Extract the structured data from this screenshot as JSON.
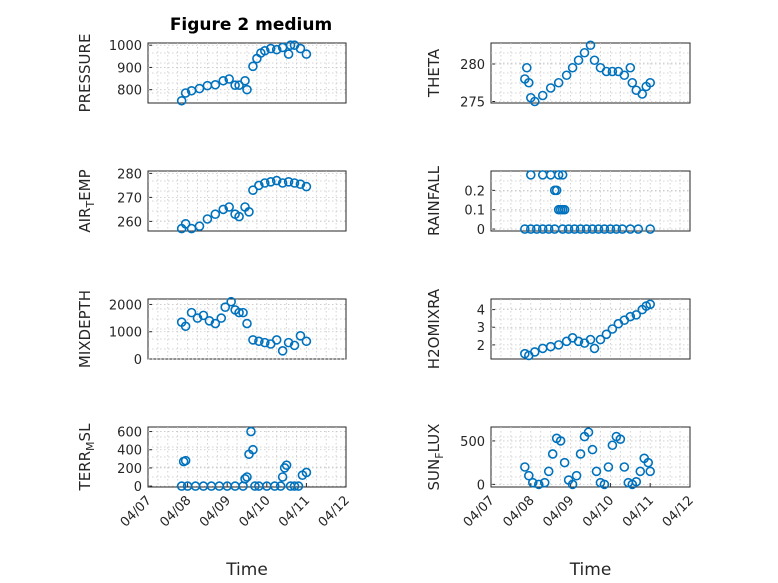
{
  "figure_title": "Figure 2 medium",
  "marker_color": "#0072bd",
  "chart_data": [
    {
      "type": "scatter",
      "ylabel": "PRESSURE",
      "xlabel": "",
      "ylim": [
        740,
        1010
      ],
      "yticks": [
        800,
        900,
        1000
      ],
      "xlim": [
        0,
        5
      ],
      "xticks": [],
      "grid": true,
      "series": [
        {
          "x": [
            0.85,
            0.95,
            1.1,
            1.3,
            1.5,
            1.7,
            1.9,
            2.05,
            2.2,
            2.3,
            2.45,
            2.5,
            2.65,
            2.75,
            2.85,
            2.95,
            3.1,
            3.25,
            3.4,
            3.55,
            3.6,
            3.7,
            3.85,
            4.0
          ],
          "y": [
            750,
            785,
            795,
            805,
            818,
            822,
            840,
            848,
            820,
            820,
            840,
            800,
            905,
            940,
            965,
            975,
            985,
            980,
            990,
            960,
            1000,
            1000,
            985,
            960
          ]
        }
      ]
    },
    {
      "type": "scatter",
      "ylabel": "THETA",
      "xlabel": "",
      "ylim": [
        274.8,
        282.8
      ],
      "yticks": [
        275,
        280
      ],
      "xlim": [
        0,
        5
      ],
      "xticks": [],
      "grid": true,
      "series": [
        {
          "x": [
            0.85,
            0.9,
            0.95,
            1.0,
            1.1,
            1.3,
            1.5,
            1.7,
            1.9,
            2.05,
            2.2,
            2.35,
            2.5,
            2.6,
            2.75,
            2.9,
            3.05,
            3.2,
            3.35,
            3.5,
            3.55,
            3.65,
            3.8,
            3.9,
            4.0
          ],
          "y": [
            278,
            279.5,
            277.5,
            275.5,
            275,
            275.8,
            276.8,
            277.5,
            278.5,
            279.5,
            280.5,
            281.5,
            282.5,
            280.5,
            279.5,
            279,
            279,
            279,
            278.5,
            279.5,
            277.5,
            276.5,
            276,
            277,
            277.5
          ]
        }
      ]
    },
    {
      "type": "scatter",
      "ylabel": "AIR_TEMP",
      "xlabel": "",
      "ylim": [
        256,
        281
      ],
      "yticks": [
        260,
        270,
        280
      ],
      "xlim": [
        0,
        5
      ],
      "xticks": [],
      "grid": true,
      "series": [
        {
          "x": [
            0.85,
            0.95,
            1.1,
            1.3,
            1.5,
            1.7,
            1.9,
            2.05,
            2.2,
            2.3,
            2.45,
            2.55,
            2.65,
            2.8,
            2.95,
            3.1,
            3.25,
            3.4,
            3.55,
            3.7,
            3.85,
            4.0
          ],
          "y": [
            257,
            259,
            257,
            258,
            261,
            263,
            265,
            266,
            263,
            262,
            266,
            264,
            273,
            275,
            276,
            276.5,
            277,
            276,
            276.5,
            276,
            275.5,
            274.5
          ]
        }
      ]
    },
    {
      "type": "scatter",
      "ylabel": "RAINFALL",
      "xlabel": "",
      "ylim": [
        -0.01,
        0.3
      ],
      "yticks": [
        0,
        0.1,
        0.2
      ],
      "xlim": [
        0,
        5
      ],
      "xticks": [],
      "grid": true,
      "series": [
        {
          "x": [
            0.85,
            1.0,
            1.15,
            1.3,
            1.45,
            1.6,
            1.8,
            1.95,
            2.1,
            2.25,
            2.4,
            2.55,
            2.7,
            2.85,
            3.0,
            3.15,
            3.3,
            3.5,
            3.7,
            4.0,
            1.0,
            1.3,
            1.5,
            1.7,
            1.8,
            1.6,
            1.65,
            1.7,
            1.75,
            1.8,
            1.85
          ],
          "y": [
            0,
            0,
            0,
            0,
            0,
            0,
            0,
            0,
            0,
            0,
            0,
            0,
            0,
            0,
            0,
            0,
            0,
            0,
            0,
            0,
            0.28,
            0.28,
            0.28,
            0.28,
            0.28,
            0.2,
            0.2,
            0.1,
            0.1,
            0.1,
            0.1
          ]
        }
      ]
    },
    {
      "type": "scatter",
      "ylabel": "MIXDEPTH",
      "xlabel": "",
      "ylim": [
        0,
        2200
      ],
      "yticks": [
        0,
        1000,
        2000
      ],
      "xlim": [
        0,
        5
      ],
      "xticks": [],
      "grid": true,
      "series": [
        {
          "x": [
            0.85,
            0.95,
            1.1,
            1.25,
            1.4,
            1.55,
            1.7,
            1.85,
            1.95,
            2.1,
            2.2,
            2.3,
            2.4,
            2.5,
            2.65,
            2.8,
            2.95,
            3.1,
            3.25,
            3.4,
            3.55,
            3.7,
            3.85,
            4.0
          ],
          "y": [
            1350,
            1200,
            1700,
            1500,
            1600,
            1400,
            1300,
            1500,
            1900,
            2100,
            1800,
            1700,
            1700,
            1300,
            700,
            650,
            600,
            550,
            700,
            300,
            600,
            500,
            850,
            650
          ]
        }
      ]
    },
    {
      "type": "scatter",
      "ylabel": "H2OMIXRA",
      "xlabel": "",
      "ylim": [
        1.2,
        4.6
      ],
      "yticks": [
        2,
        3,
        4
      ],
      "xlim": [
        0,
        5
      ],
      "xticks": [],
      "grid": true,
      "series": [
        {
          "x": [
            0.85,
            0.95,
            1.1,
            1.3,
            1.5,
            1.7,
            1.9,
            2.05,
            2.2,
            2.35,
            2.5,
            2.6,
            2.75,
            2.9,
            3.05,
            3.2,
            3.35,
            3.5,
            3.65,
            3.8,
            3.9,
            4.0
          ],
          "y": [
            1.5,
            1.4,
            1.6,
            1.8,
            1.9,
            2.0,
            2.2,
            2.4,
            2.2,
            2.1,
            2.3,
            1.8,
            2.3,
            2.6,
            2.9,
            3.2,
            3.4,
            3.6,
            3.7,
            4.0,
            4.2,
            4.3
          ]
        }
      ]
    },
    {
      "type": "scatter",
      "ylabel": "TERR_MSL",
      "xlabel": "Time",
      "ylim": [
        -10,
        650
      ],
      "yticks": [
        0,
        200,
        400,
        600
      ],
      "xlim": [
        0,
        5
      ],
      "xticks": [
        "04/07",
        "04/08",
        "04/09",
        "04/10",
        "04/11",
        "04/12"
      ],
      "grid": true,
      "series": [
        {
          "x": [
            0.85,
            0.9,
            0.95,
            1.0,
            1.2,
            1.4,
            1.6,
            1.8,
            2.0,
            2.2,
            2.4,
            2.45,
            2.5,
            2.55,
            2.6,
            2.65,
            2.7,
            2.8,
            3.0,
            3.2,
            3.35,
            3.4,
            3.45,
            3.5,
            3.6,
            3.7,
            3.8,
            3.9,
            4.0
          ],
          "y": [
            0,
            270,
            280,
            0,
            0,
            0,
            0,
            0,
            0,
            0,
            0,
            80,
            100,
            350,
            600,
            400,
            0,
            0,
            0,
            0,
            0,
            100,
            200,
            230,
            0,
            0,
            0,
            120,
            150
          ]
        }
      ]
    },
    {
      "type": "scatter",
      "ylabel": "SUN_FLUX",
      "xlabel": "Time",
      "ylim": [
        -30,
        660
      ],
      "yticks": [
        0,
        500
      ],
      "xlim": [
        0,
        5
      ],
      "xticks": [
        "04/07",
        "04/08",
        "04/09",
        "04/10",
        "04/11",
        "04/12"
      ],
      "grid": true,
      "series": [
        {
          "x": [
            0.85,
            0.95,
            1.05,
            1.2,
            1.35,
            1.45,
            1.55,
            1.65,
            1.75,
            1.85,
            1.95,
            2.05,
            2.15,
            2.25,
            2.35,
            2.45,
            2.55,
            2.65,
            2.75,
            2.85,
            2.95,
            3.05,
            3.15,
            3.25,
            3.35,
            3.45,
            3.55,
            3.65,
            3.75,
            3.85,
            3.95,
            4.0
          ],
          "y": [
            200,
            100,
            20,
            0,
            20,
            150,
            350,
            530,
            500,
            250,
            50,
            0,
            100,
            350,
            550,
            600,
            400,
            150,
            20,
            0,
            200,
            450,
            550,
            520,
            200,
            20,
            0,
            30,
            150,
            300,
            250,
            150
          ]
        }
      ]
    }
  ]
}
